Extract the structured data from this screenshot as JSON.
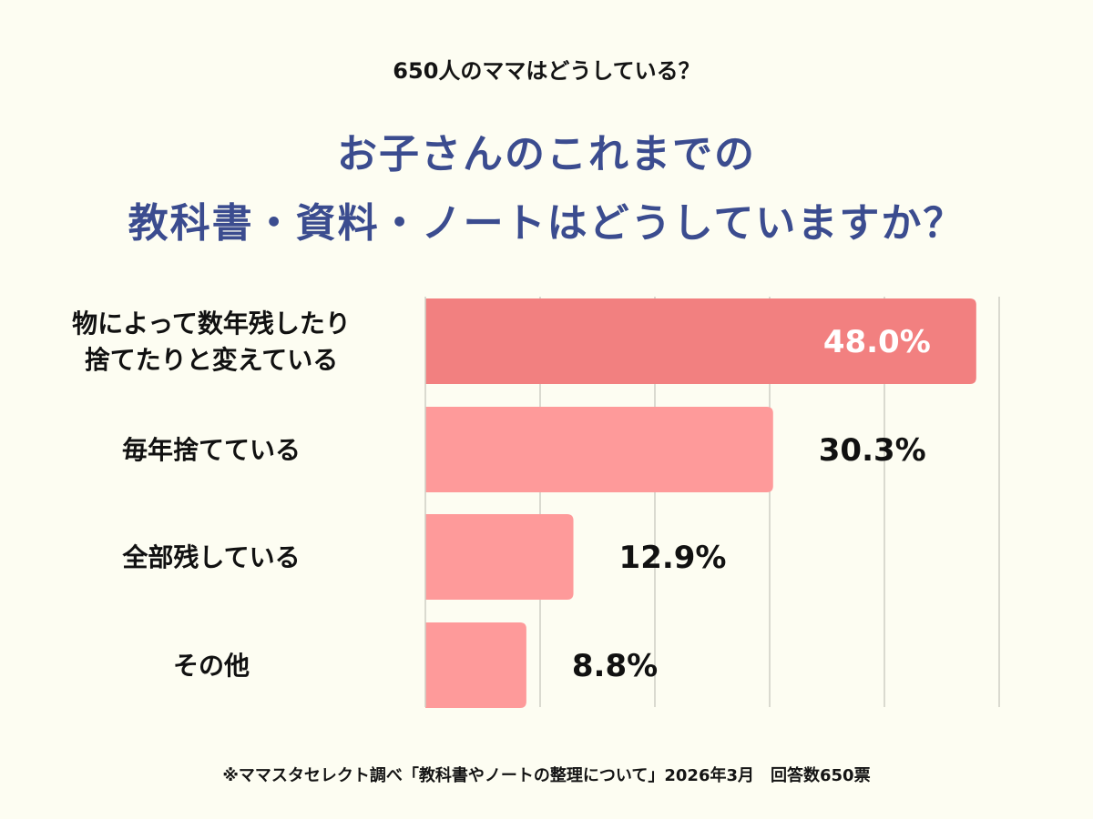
{
  "header": {
    "subtitle": "650人のママはどうしている？",
    "title_line1": "お子さんのこれまでの",
    "title_line2": "教科書・資料・ノートはどうしていますか？"
  },
  "colors": {
    "title": "#3b4c8f",
    "bar_highlight": "#f28080",
    "bar": "#fe9a9a",
    "grid": "#cfcfc4",
    "background": "#fdfdf2"
  },
  "chart_data": {
    "type": "bar",
    "orientation": "horizontal",
    "categories": [
      [
        "物によって数年残したり",
        "捨てたりと変えている"
      ],
      [
        "毎年捨てている"
      ],
      [
        "全部残している"
      ],
      [
        "その他"
      ]
    ],
    "values": [
      48.0,
      30.3,
      12.9,
      8.8
    ],
    "value_labels": [
      "48.0%",
      "30.3%",
      "12.9%",
      "8.8%"
    ],
    "xlim": [
      0,
      50
    ],
    "grid": true
  },
  "footnote": "※ママスタセレクト調べ「教科書やノートの整理について」2026年3月　回答数650票"
}
